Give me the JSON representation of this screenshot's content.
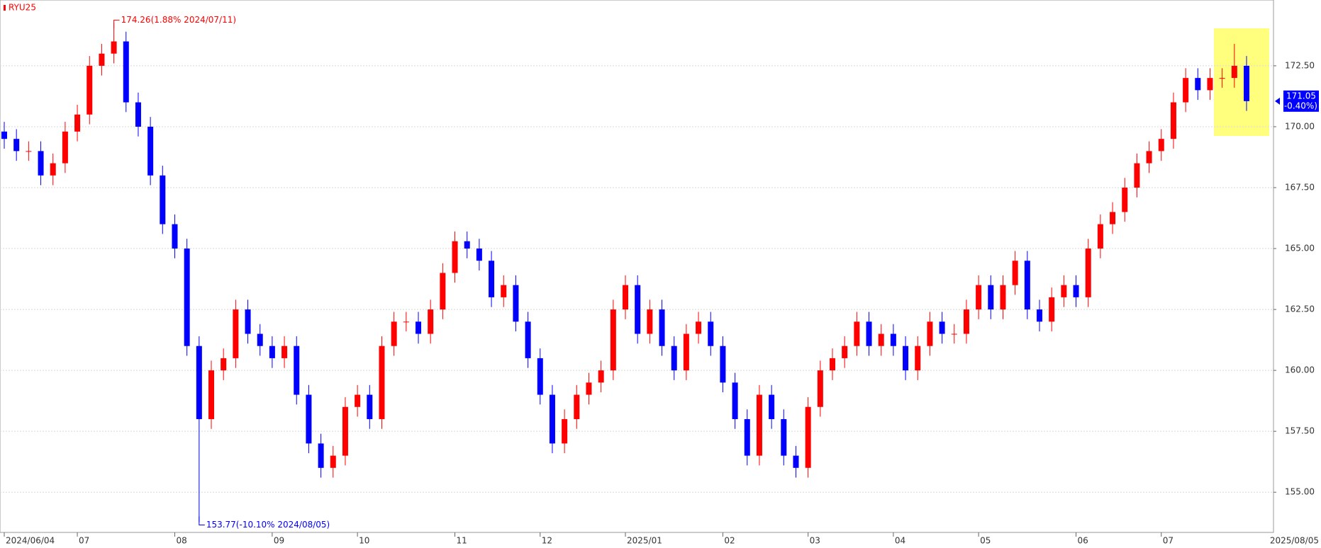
{
  "chart_data": {
    "type": "candlestick",
    "title": "RYU25",
    "categories": [
      "2024/06/04",
      null,
      null,
      null,
      null,
      null,
      "07",
      null,
      null,
      null,
      null,
      null,
      null,
      null,
      "08",
      null,
      null,
      null,
      null,
      null,
      null,
      null,
      "09",
      null,
      null,
      null,
      null,
      null,
      null,
      "10",
      null,
      null,
      null,
      null,
      null,
      null,
      null,
      "11",
      null,
      null,
      null,
      null,
      null,
      null,
      "12",
      null,
      null,
      null,
      null,
      null,
      null,
      "2025/01",
      null,
      null,
      null,
      null,
      null,
      null,
      null,
      "02",
      null,
      null,
      null,
      null,
      null,
      null,
      "03",
      null,
      null,
      null,
      null,
      null,
      null,
      "04",
      null,
      null,
      null,
      null,
      null,
      null,
      "05",
      null,
      null,
      null,
      null,
      null,
      null,
      null,
      "06",
      null,
      null,
      null,
      null,
      null,
      null,
      "07",
      null,
      null,
      null,
      null,
      null,
      null,
      null
    ],
    "x_end_label": "2025/08/05",
    "open": [
      169.8,
      169.5,
      169,
      169,
      168,
      168.5,
      169.8,
      170.5,
      172.5,
      173,
      173.5,
      171,
      170,
      168,
      166,
      165,
      161,
      158,
      160,
      160.5,
      162.5,
      161.5,
      161,
      160.5,
      161,
      159,
      157,
      156,
      156.5,
      158.5,
      159,
      158,
      161,
      162,
      162,
      161.5,
      162.5,
      164,
      165.3,
      165,
      164.5,
      163,
      163.5,
      162,
      160.5,
      159,
      157,
      158,
      159,
      159.5,
      160,
      162.5,
      163.5,
      161.5,
      162.5,
      161,
      160,
      161.5,
      162,
      161,
      159.5,
      158,
      156.5,
      159,
      158,
      156.5,
      156,
      158.5,
      160,
      160.5,
      161,
      162,
      161,
      161.5,
      161,
      160,
      161,
      162,
      161.5,
      161.5,
      162.5,
      163.5,
      162.5,
      163.5,
      164.5,
      162.5,
      162,
      163,
      163.5,
      163,
      165,
      166,
      166.5,
      167.5,
      168.5,
      169,
      169.5,
      171,
      172,
      171.5,
      172,
      172,
      172.5
    ],
    "high": [
      170.2,
      169.9,
      169.4,
      169.4,
      168.9,
      170.2,
      170.9,
      172.9,
      173.4,
      174.26,
      173.9,
      171.4,
      170.4,
      168.4,
      166.4,
      165.4,
      161.4,
      160.4,
      160.9,
      162.9,
      162.9,
      161.9,
      161.4,
      161.4,
      161.4,
      159.4,
      157.4,
      156.9,
      158.9,
      159.4,
      159.4,
      161.4,
      162.4,
      162.4,
      162.4,
      162.9,
      164.4,
      165.7,
      165.7,
      165.4,
      164.9,
      163.9,
      163.9,
      162.4,
      160.9,
      159.4,
      158.4,
      159.4,
      159.9,
      160.4,
      162.9,
      163.9,
      163.9,
      162.9,
      162.9,
      161.4,
      161.9,
      162.4,
      162.4,
      161.4,
      159.9,
      158.4,
      159.4,
      159.4,
      158.4,
      156.9,
      158.9,
      160.4,
      160.9,
      161.4,
      162.4,
      162.4,
      161.9,
      161.9,
      161.4,
      161.4,
      162.4,
      162.4,
      161.9,
      162.9,
      163.9,
      163.9,
      163.9,
      164.9,
      164.9,
      162.9,
      163.4,
      163.9,
      163.9,
      165.4,
      166.4,
      166.9,
      167.9,
      168.9,
      169.4,
      169.9,
      171.4,
      172.4,
      172.4,
      172.4,
      172.4,
      173.4,
      172.9
    ],
    "low": [
      169.1,
      168.6,
      168.6,
      167.6,
      167.6,
      168.1,
      169.4,
      170.1,
      172.1,
      172.6,
      170.6,
      169.6,
      167.6,
      165.6,
      164.6,
      160.6,
      153.77,
      157.6,
      159.6,
      160.1,
      161.1,
      160.6,
      160.1,
      160.1,
      158.6,
      156.6,
      155.6,
      155.6,
      156.1,
      158.1,
      157.6,
      157.6,
      160.6,
      161.6,
      161.1,
      161.1,
      162.1,
      163.6,
      164.6,
      164.1,
      162.6,
      162.6,
      161.6,
      160.1,
      158.6,
      156.6,
      156.6,
      157.6,
      158.6,
      159.1,
      159.6,
      162.1,
      161.1,
      161.1,
      160.6,
      159.6,
      159.6,
      161.1,
      160.6,
      159.1,
      157.6,
      156.1,
      156.1,
      157.6,
      156.1,
      155.6,
      155.6,
      158.1,
      159.6,
      160.1,
      160.6,
      160.6,
      160.6,
      160.6,
      159.6,
      159.6,
      160.6,
      161.1,
      161.1,
      161.1,
      162.1,
      162.1,
      162.1,
      163.1,
      162.1,
      161.6,
      161.6,
      162.6,
      162.6,
      162.6,
      164.6,
      165.6,
      166.1,
      167.1,
      168.1,
      168.6,
      169.1,
      170.6,
      171.1,
      171.1,
      171.6,
      171.6,
      170.65
    ],
    "close": [
      169.5,
      169,
      169,
      168,
      168.5,
      169.8,
      170.5,
      172.5,
      173,
      173.5,
      171,
      170,
      168,
      166,
      165,
      161,
      158,
      160,
      160.5,
      162.5,
      161.5,
      161,
      160.5,
      161,
      159,
      157,
      156,
      156.5,
      158.5,
      159,
      158,
      161,
      162,
      162,
      161.5,
      162.5,
      164,
      165.3,
      165,
      164.5,
      163,
      163.5,
      162,
      160.5,
      159,
      157,
      158,
      159,
      159.5,
      160,
      162.5,
      163.5,
      161.5,
      162.5,
      161,
      160,
      161.5,
      162,
      161,
      159.5,
      158,
      156.5,
      159,
      158,
      156.5,
      156,
      158.5,
      160,
      160.5,
      161,
      162,
      161,
      161.5,
      161,
      160,
      161,
      162,
      161.5,
      161.5,
      162.5,
      163.5,
      162.5,
      163.5,
      164.5,
      162.5,
      162,
      163,
      163.5,
      163,
      165,
      166,
      166.5,
      167.5,
      168.5,
      169,
      169.5,
      171,
      172,
      171.5,
      172,
      172,
      172.5,
      171.05
    ],
    "up_color": "#ff0000",
    "down_color": "#0000ff",
    "ylim": [
      153.35,
      175.2
    ],
    "yticks": [
      {
        "value": 155,
        "label": "155.00"
      },
      {
        "value": 157.5,
        "label": "157.50"
      },
      {
        "value": 160,
        "label": "160.00"
      },
      {
        "value": 162.5,
        "label": "162.50"
      },
      {
        "value": 165,
        "label": "165.00"
      },
      {
        "value": 167.5,
        "label": "167.50"
      },
      {
        "value": 170,
        "label": "170.00"
      },
      {
        "value": 172.5,
        "label": "172.50"
      }
    ],
    "grid": true,
    "high_annotation": "174.26(1.88% 2024/07/11)",
    "low_annotation": "153.77(-10.10% 2024/08/05)",
    "last_price": {
      "label": "171.05",
      "change": "(-0.40%)"
    }
  }
}
